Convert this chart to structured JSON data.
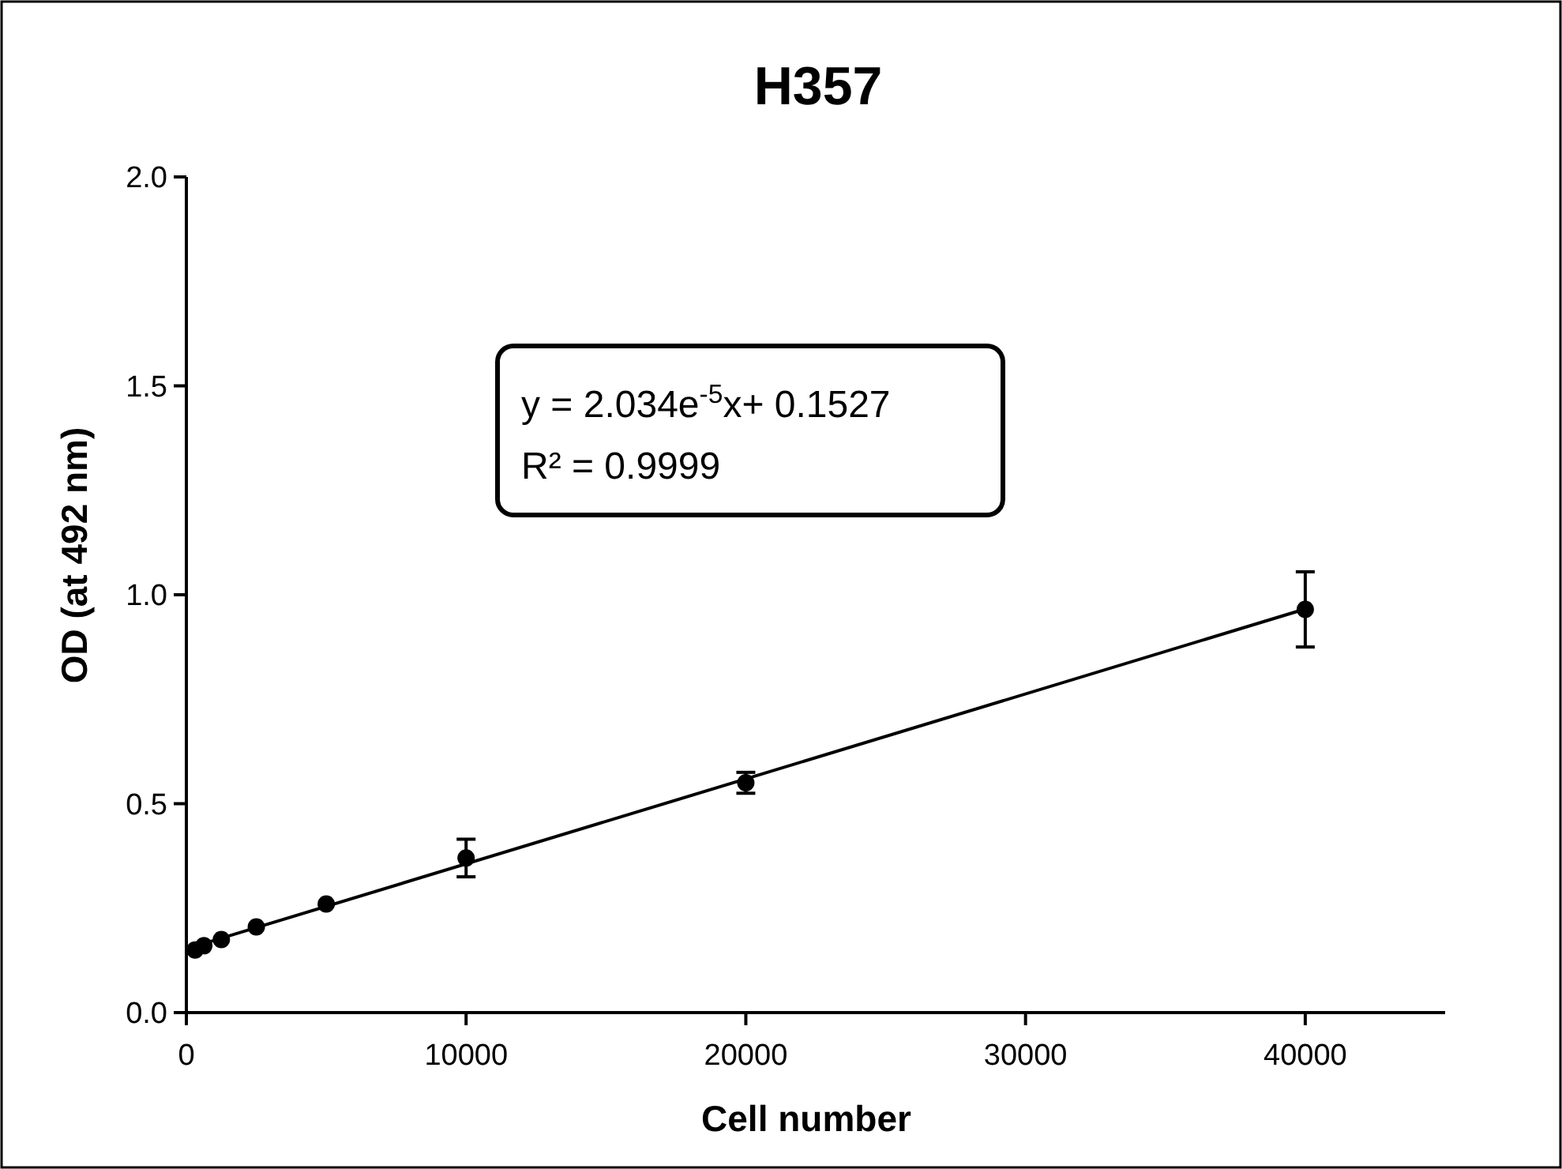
{
  "chart_data": {
    "type": "scatter",
    "title": "H357",
    "xlabel": "Cell number",
    "ylabel": "OD (at 492 nm)",
    "annotations": [
      "y = 2.034e$^{-5}$x+ 0.1527",
      "R² = 0.9999"
    ],
    "x": [
      312,
      625,
      1250,
      2500,
      5000,
      10000,
      20000,
      40000
    ],
    "series": [
      {
        "color": "#000000",
        "values": [
          0.15,
          0.16,
          0.175,
          0.205,
          0.26,
          0.37,
          0.55,
          0.965
        ],
        "errors": [
          null,
          null,
          null,
          null,
          null,
          0.045,
          0.025,
          0.09
        ],
        "marker": "circle"
      },
      {
        "type": "line",
        "color": "#000000",
        "x": [
          312,
          40000
        ],
        "values": [
          0.159,
          0.966
        ],
        "line_style": "solid"
      }
    ],
    "xlim": [
      0,
      45000
    ],
    "xticks": [
      0,
      10000,
      20000,
      30000,
      40000
    ],
    "ylim": [
      0,
      2.0
    ],
    "yticks": [
      {
        "value": 0,
        "label": "0.0"
      },
      0.5,
      {
        "value": 1,
        "label": "1.0"
      },
      1.5,
      {
        "value": 2,
        "label": "2.0"
      }
    ],
    "grid": false
  }
}
